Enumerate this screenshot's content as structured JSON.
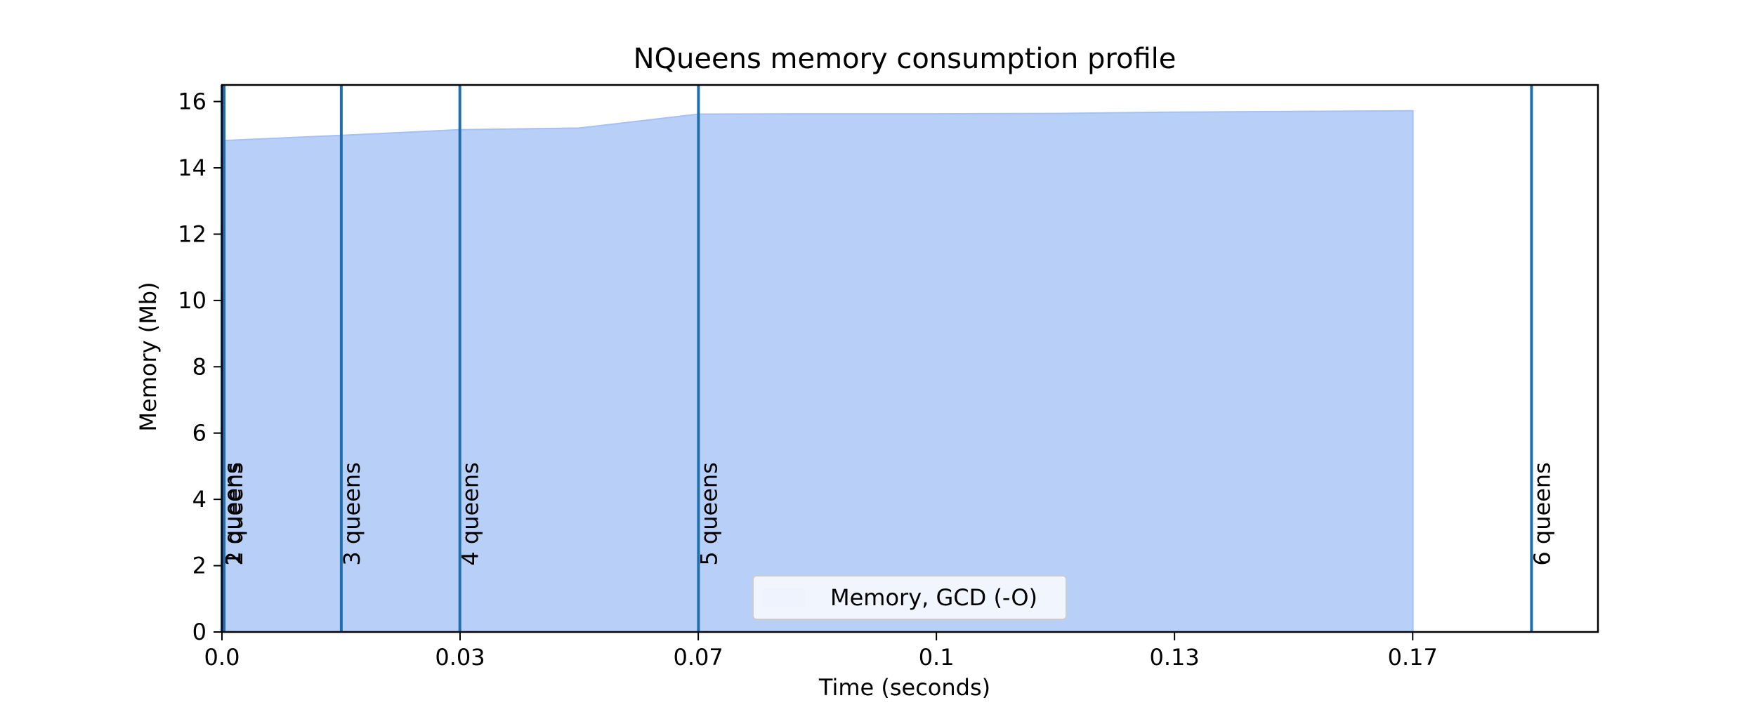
{
  "chart_data": {
    "type": "area",
    "title": "NQueens memory consumption profile",
    "xlabel": "Time (seconds)",
    "ylabel": "Memory (Mb)",
    "xlim": [
      0,
      0.1926
    ],
    "ylim": [
      0,
      16.5
    ],
    "xticks": [
      {
        "value": 0,
        "label": "0.0"
      },
      {
        "value": 0.03333,
        "label": "0.03"
      },
      {
        "value": 0.06667,
        "label": "0.07"
      },
      {
        "value": 0.1,
        "label": "0.1"
      },
      {
        "value": 0.13333,
        "label": "0.13"
      },
      {
        "value": 0.16667,
        "label": "0.17"
      }
    ],
    "yticks": [
      {
        "value": 0,
        "label": "0"
      },
      {
        "value": 2,
        "label": "2"
      },
      {
        "value": 4,
        "label": "4"
      },
      {
        "value": 6,
        "label": "6"
      },
      {
        "value": 8,
        "label": "8"
      },
      {
        "value": 10,
        "label": "10"
      },
      {
        "value": 12,
        "label": "12"
      },
      {
        "value": 14,
        "label": "14"
      },
      {
        "value": 16,
        "label": "16"
      }
    ],
    "series": [
      {
        "name": "Memory, GCD (-O)",
        "x": [
          0,
          0.0167,
          0.0333,
          0.05,
          0.0667,
          0.0833,
          0.1,
          0.1167,
          0.1333,
          0.15,
          0.1667
        ],
        "y": [
          14.82,
          14.98,
          15.15,
          15.2,
          15.62,
          15.63,
          15.63,
          15.64,
          15.68,
          15.7,
          15.72
        ]
      }
    ],
    "vlines": [
      {
        "x": 0.0,
        "label": "1 queens"
      },
      {
        "x": 0.0003,
        "label": "2 queens"
      },
      {
        "x": 0.0167,
        "label": "3 queens"
      },
      {
        "x": 0.0333,
        "label": "4 queens"
      },
      {
        "x": 0.0667,
        "label": "5 queens"
      },
      {
        "x": 0.1833,
        "label": "6 queens"
      }
    ],
    "vline_label_y": 2,
    "legend": {
      "placement": "lower center",
      "entries": [
        "Memory, GCD (-O)"
      ]
    },
    "grid": false,
    "colors": {
      "area_fill": "#b8cff8",
      "area_edge": "#a4c1f5",
      "vline": "#1f6fae",
      "axes": "#000000",
      "legend_patch": "#eef3fd"
    }
  }
}
